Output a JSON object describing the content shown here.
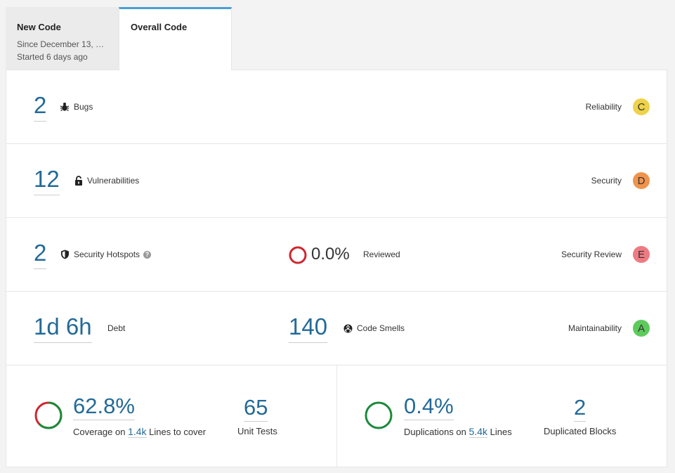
{
  "tabs": {
    "new_code": {
      "title": "New Code",
      "since": "Since December 13, …",
      "started": "Started 6 days ago"
    },
    "overall_code": {
      "title": "Overall Code"
    }
  },
  "metrics": {
    "bugs": {
      "value": "2",
      "label": "Bugs",
      "rating_label": "Reliability",
      "rating": "C",
      "rating_color": "#eed24a"
    },
    "vulnerabilities": {
      "value": "12",
      "label": "Vulnerabilities",
      "rating_label": "Security",
      "rating": "D",
      "rating_color": "#f0944c"
    },
    "hotspots": {
      "value": "2",
      "label": "Security Hotspots",
      "help": "?",
      "reviewed_pct": "0.0%",
      "reviewed_label": "Reviewed",
      "rating_label": "Security Review",
      "rating": "E",
      "rating_color": "#ee7b82"
    },
    "maintainability": {
      "debt_value": "1d 6h",
      "debt_label": "Debt",
      "smells_value": "140",
      "smells_label": "Code Smells",
      "rating_label": "Maintainability",
      "rating": "A",
      "rating_color": "#5ccb5c"
    }
  },
  "coverage": {
    "value": "62.8%",
    "coverage_fraction": 0.628,
    "prefix": "Coverage on",
    "lines": "1.4k",
    "suffix": "Lines to cover",
    "unit_tests_value": "65",
    "unit_tests_label": "Unit Tests"
  },
  "duplications": {
    "value": "0.4%",
    "prefix": "Duplications on",
    "lines": "5.4k",
    "suffix": "Lines",
    "blocks_value": "2",
    "blocks_label": "Duplicated Blocks"
  },
  "colors": {
    "accent": "#4b9fd5",
    "link": "#236a97",
    "covered": "#1a8a3a",
    "uncovered": "#d0262f"
  }
}
